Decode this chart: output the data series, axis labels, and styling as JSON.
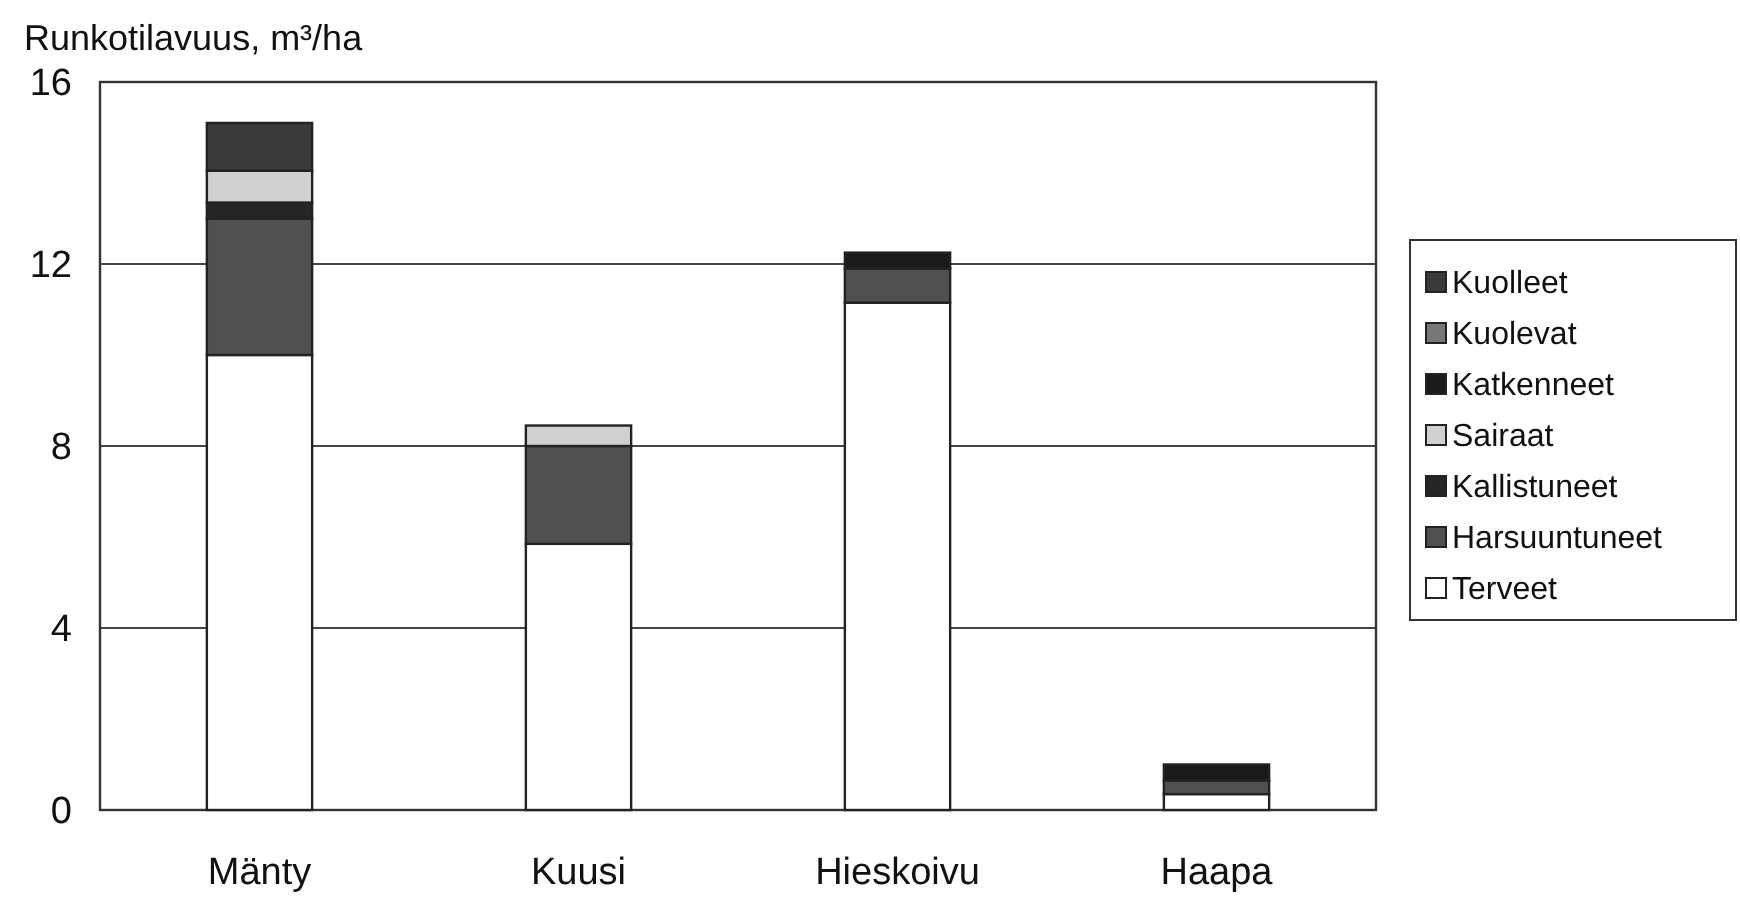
{
  "chart_data": {
    "type": "bar",
    "stacked": true,
    "title": "Runkotilavuus, m³/ha",
    "categories": [
      "Mänty",
      "Kuusi",
      "Hieskoivu",
      "Haapa"
    ],
    "series": [
      {
        "name": "Terveet",
        "color": "#ffffff",
        "values": [
          10,
          5.85,
          11.15,
          0.35
        ]
      },
      {
        "name": "Harsuuntuneet",
        "color": "#505050",
        "values": [
          3,
          2.15,
          0.75,
          0.3
        ]
      },
      {
        "name": "Kallistuneet",
        "color": "#262626",
        "values": [
          0.35,
          0,
          0,
          0
        ]
      },
      {
        "name": "Sairaat",
        "color": "#d0d0d0",
        "values": [
          0.7,
          0.45,
          0,
          0
        ]
      },
      {
        "name": "Katkenneet",
        "color": "#1a1a1a",
        "values": [
          0,
          0,
          0.35,
          0.35
        ]
      },
      {
        "name": "Kuolevat",
        "color": "#777777",
        "values": [
          0,
          0,
          0,
          0
        ]
      },
      {
        "name": "Kuolleet",
        "color": "#3a3a3a",
        "values": [
          1.05,
          0,
          0,
          0
        ]
      }
    ],
    "ylim": [
      0,
      16
    ],
    "yticks": [
      0,
      4,
      8,
      12,
      16
    ],
    "grid": "y",
    "legend": "right"
  }
}
